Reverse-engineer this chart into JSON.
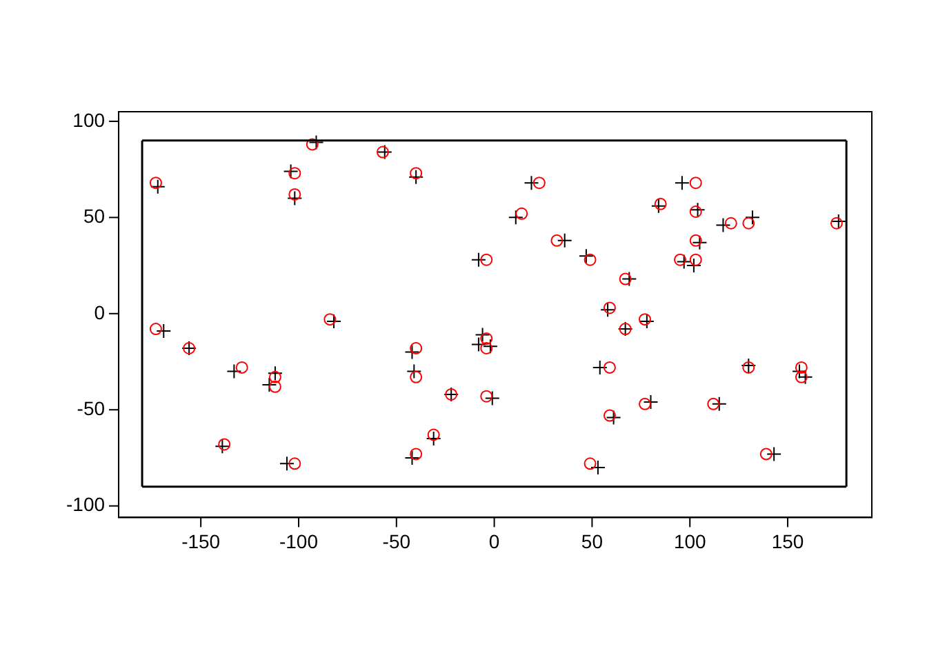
{
  "chart_data": {
    "type": "scatter",
    "xlim": [
      -192,
      193
    ],
    "ylim": [
      -106,
      105
    ],
    "xticks": [
      -150,
      -100,
      -50,
      0,
      50,
      100,
      150
    ],
    "yticks": [
      -100,
      -50,
      0,
      50,
      100
    ],
    "grid": false,
    "legend": false,
    "series": [
      {
        "type": "line",
        "color": "#000000",
        "marker": "none",
        "x": [
          -180,
          180
        ],
        "values": [
          -90,
          -90
        ],
        "errors": [
          [
            -90,
            90
          ],
          [
            -90,
            90
          ]
        ]
      },
      {
        "type": "line",
        "color": "#000000",
        "marker": "none",
        "x": [
          -180,
          180
        ],
        "values": [
          90,
          90
        ]
      },
      {
        "color": "#ff0000",
        "marker": "circle",
        "x": [
          -173,
          -93,
          -102,
          -102,
          -57,
          -40,
          23,
          14,
          -4,
          32,
          49,
          67,
          85,
          103,
          103,
          121,
          130,
          175,
          95,
          103,
          103,
          59,
          67,
          77,
          -173,
          -156,
          -129,
          -112,
          -112,
          -84,
          -40,
          -40,
          -4,
          -4,
          -4,
          -22,
          -31,
          -40,
          -138,
          -102,
          59,
          59,
          77,
          112,
          130,
          157,
          157,
          139,
          49
        ],
        "values": [
          68,
          88,
          73,
          62,
          84,
          73,
          68,
          52,
          28,
          38,
          28,
          18,
          57,
          68,
          53,
          47,
          47,
          47,
          28,
          38,
          28,
          3,
          -8,
          -3,
          -8,
          -18,
          -28,
          -33,
          -38,
          -3,
          -18,
          -33,
          -13,
          -18,
          -43,
          -42,
          -63,
          -73,
          -68,
          -78,
          -28,
          -53,
          -47,
          -47,
          -28,
          -28,
          -33,
          -73,
          -78
        ]
      },
      {
        "color": "#000000",
        "marker": "cross",
        "x": [
          -172,
          -91,
          -104,
          -102,
          -56,
          -40,
          19,
          11,
          -8,
          36,
          47,
          69,
          84,
          96,
          104,
          117,
          132,
          176,
          97,
          102,
          105,
          58,
          67,
          78,
          -169,
          -156,
          -133,
          -112,
          -115,
          -82,
          -42,
          -41,
          -6,
          -8,
          -2,
          -1,
          -22,
          -31,
          -42,
          -139,
          -106,
          54,
          61,
          80,
          115,
          130,
          156,
          159,
          143,
          53
        ],
        "values": [
          66,
          89,
          74,
          60,
          84,
          71,
          68,
          50,
          28,
          38,
          30,
          18,
          56,
          68,
          54,
          46,
          50,
          48,
          27,
          25,
          37,
          2,
          -8,
          -4,
          -9,
          -18,
          -30,
          -31,
          -37,
          -4,
          -20,
          -30,
          -11,
          -16,
          -17,
          -44,
          -42,
          -65,
          -75,
          -69,
          -78,
          -28,
          -54,
          -46,
          -47,
          -27,
          -30,
          -33,
          -73,
          -80
        ]
      }
    ]
  }
}
